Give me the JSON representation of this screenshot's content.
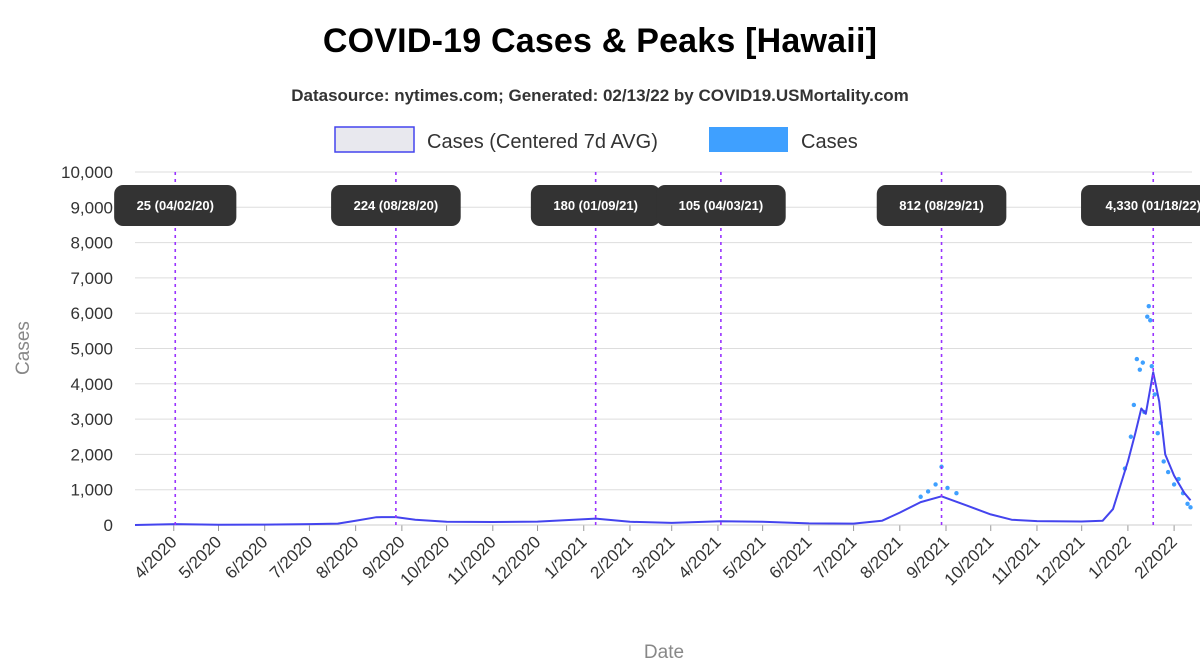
{
  "chart_data": {
    "type": "line",
    "title": "COVID-19 Cases & Peaks [Hawaii]",
    "subtitle": "Datasource: nytimes.com; Generated: 02/13/22 by COVID19.USMortality.com",
    "xlabel": "Date",
    "ylabel": "Cases",
    "ylim": [
      0,
      10000
    ],
    "yticks": [
      0,
      1000,
      2000,
      3000,
      4000,
      5000,
      6000,
      7000,
      8000,
      9000,
      10000
    ],
    "ytick_labels": [
      "0",
      "1,000",
      "2,000",
      "3,000",
      "4,000",
      "5,000",
      "6,000",
      "7,000",
      "8,000",
      "9,000",
      "10,000"
    ],
    "xlim": [
      "2020-03-06",
      "2022-02-13"
    ],
    "xticks": [
      "2020-04-01",
      "2020-05-01",
      "2020-06-01",
      "2020-07-01",
      "2020-08-01",
      "2020-09-01",
      "2020-10-01",
      "2020-11-01",
      "2020-12-01",
      "2021-01-01",
      "2021-02-01",
      "2021-03-01",
      "2021-04-01",
      "2021-05-01",
      "2021-06-01",
      "2021-07-01",
      "2021-08-01",
      "2021-09-01",
      "2021-10-01",
      "2021-11-01",
      "2021-12-01",
      "2022-01-01",
      "2022-02-01"
    ],
    "xtick_labels": [
      "4/2020",
      "5/2020",
      "6/2020",
      "7/2020",
      "8/2020",
      "9/2020",
      "10/2020",
      "11/2020",
      "12/2020",
      "1/2021",
      "2/2021",
      "3/2021",
      "4/2021",
      "5/2021",
      "6/2021",
      "7/2021",
      "8/2021",
      "9/2021",
      "10/2021",
      "11/2021",
      "12/2021",
      "1/2022",
      "2/2022"
    ],
    "grid": true,
    "legend_position": "top-center",
    "series": [
      {
        "name": "Cases (Centered 7d AVG)",
        "kind": "line",
        "color": "#4444ee",
        "fill": "#e8e8ee",
        "points": [
          [
            "2020-03-06",
            0
          ],
          [
            "2020-04-02",
            25
          ],
          [
            "2020-05-01",
            8
          ],
          [
            "2020-06-01",
            10
          ],
          [
            "2020-07-01",
            25
          ],
          [
            "2020-07-20",
            40
          ],
          [
            "2020-08-01",
            120
          ],
          [
            "2020-08-15",
            220
          ],
          [
            "2020-08-28",
            224
          ],
          [
            "2020-09-10",
            150
          ],
          [
            "2020-10-01",
            90
          ],
          [
            "2020-11-01",
            85
          ],
          [
            "2020-12-01",
            95
          ],
          [
            "2021-01-09",
            180
          ],
          [
            "2021-02-01",
            90
          ],
          [
            "2021-03-01",
            60
          ],
          [
            "2021-04-03",
            105
          ],
          [
            "2021-05-01",
            90
          ],
          [
            "2021-06-01",
            45
          ],
          [
            "2021-07-01",
            40
          ],
          [
            "2021-07-20",
            120
          ],
          [
            "2021-08-01",
            350
          ],
          [
            "2021-08-15",
            650
          ],
          [
            "2021-08-29",
            812
          ],
          [
            "2021-09-15",
            550
          ],
          [
            "2021-10-01",
            300
          ],
          [
            "2021-10-15",
            150
          ],
          [
            "2021-11-01",
            110
          ],
          [
            "2021-12-01",
            100
          ],
          [
            "2021-12-15",
            120
          ],
          [
            "2021-12-22",
            450
          ],
          [
            "2022-01-01",
            1800
          ],
          [
            "2022-01-06",
            2600
          ],
          [
            "2022-01-10",
            3300
          ],
          [
            "2022-01-13",
            3150
          ],
          [
            "2022-01-18",
            4330
          ],
          [
            "2022-01-22",
            3500
          ],
          [
            "2022-01-26",
            2000
          ],
          [
            "2022-02-01",
            1400
          ],
          [
            "2022-02-08",
            900
          ],
          [
            "2022-02-12",
            700
          ]
        ]
      },
      {
        "name": "Cases",
        "kind": "scatter",
        "color": "#3fa0ff",
        "points": [
          [
            "2021-08-25",
            1150
          ],
          [
            "2021-08-29",
            1650
          ],
          [
            "2021-09-02",
            1050
          ],
          [
            "2021-09-08",
            900
          ],
          [
            "2021-08-20",
            950
          ],
          [
            "2021-08-15",
            800
          ],
          [
            "2021-12-30",
            1600
          ],
          [
            "2022-01-03",
            2500
          ],
          [
            "2022-01-05",
            3400
          ],
          [
            "2022-01-07",
            4700
          ],
          [
            "2022-01-09",
            4400
          ],
          [
            "2022-01-11",
            4600
          ],
          [
            "2022-01-12",
            3200
          ],
          [
            "2022-01-14",
            5900
          ],
          [
            "2022-01-15",
            6200
          ],
          [
            "2022-01-16",
            5800
          ],
          [
            "2022-01-17",
            4500
          ],
          [
            "2022-01-19",
            3700
          ],
          [
            "2022-01-21",
            2600
          ],
          [
            "2022-01-23",
            2900
          ],
          [
            "2022-01-25",
            1800
          ],
          [
            "2022-01-28",
            1500
          ],
          [
            "2022-02-01",
            1150
          ],
          [
            "2022-02-04",
            1300
          ],
          [
            "2022-02-07",
            900
          ],
          [
            "2022-02-10",
            600
          ],
          [
            "2022-02-12",
            500
          ]
        ]
      }
    ],
    "peaks": [
      {
        "date": "2020-04-02",
        "label": "25 (04/02/20)"
      },
      {
        "date": "2020-08-28",
        "label": "224 (08/28/20)"
      },
      {
        "date": "2021-01-09",
        "label": "180 (01/09/21)"
      },
      {
        "date": "2021-04-03",
        "label": "105 (04/03/21)"
      },
      {
        "date": "2021-08-29",
        "label": "812 (08/29/21)"
      },
      {
        "date": "2022-01-18",
        "label": "4,330 (01/18/22)"
      }
    ],
    "peak_line_color": "#9933ff",
    "peak_label_bg": "#333333"
  }
}
